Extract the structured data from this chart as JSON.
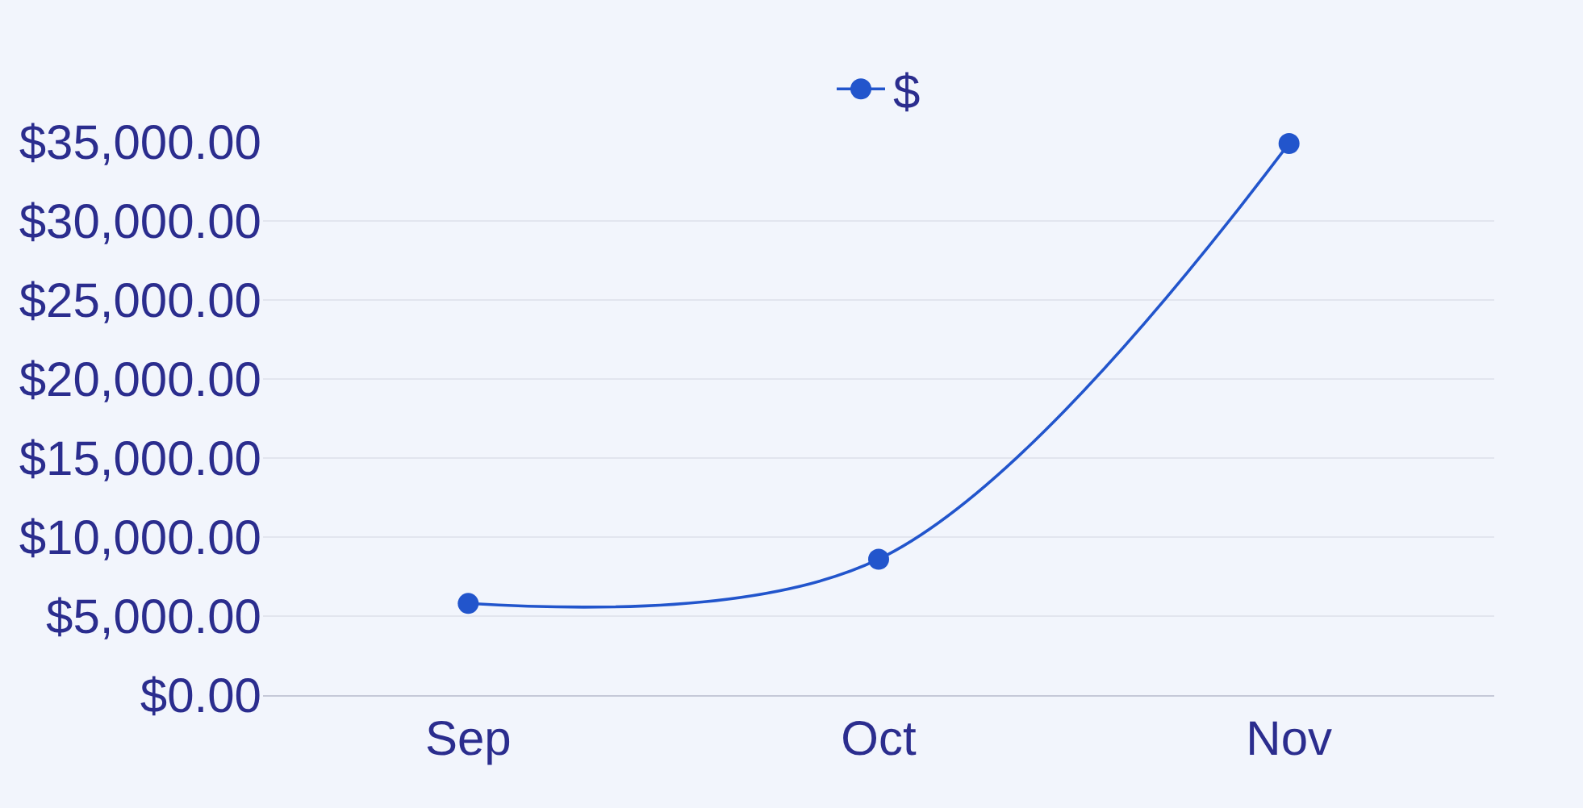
{
  "chart_data": {
    "type": "line",
    "categories": [
      "Sep",
      "Oct",
      "Nov"
    ],
    "series": [
      {
        "name": "$",
        "color": "#2255cc",
        "values": [
          5800,
          8600,
          34900
        ]
      }
    ],
    "ylim": [
      0,
      35000
    ],
    "yticks": [
      {
        "value": 0,
        "label": "$0.00"
      },
      {
        "value": 5000,
        "label": "$5,000.00"
      },
      {
        "value": 10000,
        "label": "$10,000.00"
      },
      {
        "value": 15000,
        "label": "$15,000.00"
      },
      {
        "value": 20000,
        "label": "$20,000.00"
      },
      {
        "value": 25000,
        "label": "$25,000.00"
      },
      {
        "value": 30000,
        "label": "$30,000.00"
      },
      {
        "value": 35000,
        "label": "$35,000.00"
      }
    ],
    "grid": "y",
    "legend": "top",
    "marker": "circle",
    "line_style": "solid"
  }
}
